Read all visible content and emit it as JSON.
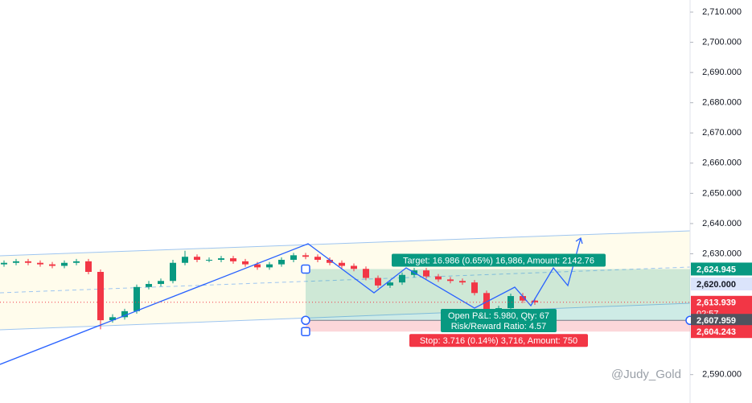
{
  "chart_data": {
    "type": "candlestick",
    "open": [
      2626.5,
      2627,
      2627.5,
      2627,
      2626.5,
      2626,
      2627,
      2627.5,
      2624,
      2608,
      2609,
      2611,
      2619,
      2620,
      2621,
      2627,
      2629,
      2628,
      2628,
      2628.5,
      2627.5,
      2626.5,
      2625.5,
      2626.5,
      2628,
      2629.5,
      2629,
      2628,
      2627,
      2626,
      2625,
      2622,
      2619.5,
      2620.5,
      2623,
      2624.5,
      2622.5,
      2621.5,
      2621,
      2620.5,
      2617,
      2611,
      2612,
      2616,
      2614.5
    ],
    "high": [
      2627.8,
      2628.3,
      2628.3,
      2627.8,
      2627.3,
      2627.8,
      2628.3,
      2628.3,
      2624.8,
      2610,
      2611.8,
      2619.8,
      2621,
      2621.8,
      2628,
      2631,
      2629.8,
      2628.8,
      2629.3,
      2629.3,
      2628.3,
      2627.3,
      2627.3,
      2628.8,
      2630.3,
      2630.3,
      2629.8,
      2628.8,
      2627.8,
      2626.8,
      2625.8,
      2622.8,
      2621.3,
      2623.8,
      2625.3,
      2625.3,
      2623.3,
      2622.3,
      2621.8,
      2621.3,
      2617.8,
      2612.8,
      2616.8,
      2617,
      2615.3
    ],
    "low": [
      2625.7,
      2626.2,
      2626.2,
      2625.7,
      2625.2,
      2625.2,
      2626.2,
      2623.2,
      2605,
      2607.2,
      2608.2,
      2610.2,
      2618.2,
      2619.2,
      2620.2,
      2626.2,
      2627.2,
      2627.2,
      2627.2,
      2626.7,
      2625.7,
      2624.7,
      2624.7,
      2625.7,
      2627.2,
      2628.2,
      2627.2,
      2626.2,
      2625.2,
      2624.2,
      2621.2,
      2618.7,
      2618.7,
      2619.7,
      2622.2,
      2621.7,
      2620.7,
      2620.2,
      2619.7,
      2616.2,
      2610.2,
      2610.2,
      2611.2,
      2613.7,
      2613.1
    ],
    "close": [
      2627,
      2627.5,
      2627,
      2626.5,
      2626,
      2627,
      2627.5,
      2624,
      2608,
      2609,
      2611,
      2619,
      2620,
      2621,
      2627,
      2629,
      2628,
      2628,
      2628.5,
      2627.5,
      2626.5,
      2625.5,
      2626.5,
      2628,
      2629.5,
      2629,
      2628,
      2627,
      2626,
      2625,
      2622,
      2619.5,
      2620.5,
      2623,
      2624.5,
      2622.5,
      2621.5,
      2621,
      2620.5,
      2617,
      2611,
      2612,
      2616,
      2614.5,
      2613.939
    ],
    "up_color": "#089981",
    "down_color": "#f23645",
    "ylim": [
      2580.6,
      2714
    ],
    "yticks": [
      {
        "value": 2710,
        "label": "2,710.000"
      },
      {
        "value": 2700,
        "label": "2,700.000"
      },
      {
        "value": 2690,
        "label": "2,690.000"
      },
      {
        "value": 2680,
        "label": "2,680.000"
      },
      {
        "value": 2670,
        "label": "2,670.000"
      },
      {
        "value": 2660,
        "label": "2,660.000"
      },
      {
        "value": 2650,
        "label": "2,650.000"
      },
      {
        "value": 2640,
        "label": "2,640.000"
      },
      {
        "value": 2630,
        "label": "2,630.000"
      },
      {
        "value": 2590,
        "label": "2,590.000"
      }
    ],
    "position": {
      "entry": 2607.959,
      "target": 2624.945,
      "stop": 2604.243,
      "target_label": "Target: 16.986 (0.65%) 16,986, Amount: 2142.76",
      "pnl_label": "Open P&L: 5.980, Qty: 67",
      "ratio_label": "Risk/Reward Ratio: 4.57",
      "stop_label": "Stop: 3.716 (0.14%) 3,716, Amount: 750"
    },
    "price_labels": [
      {
        "value": 2624.945,
        "label": "2,624.945",
        "color": "#089981"
      },
      {
        "value": 2620,
        "label": "2,620.000",
        "color": "#dbe4fb"
      },
      {
        "value": 2613.939,
        "label": "2,613.939",
        "color": "#f23645"
      },
      {
        "value": 2607.959,
        "label": "2,607.959",
        "color": "#50535e"
      },
      {
        "value": 2604.243,
        "label": "2,604.243",
        "color": "#f23645"
      }
    ],
    "countdown": "02:57"
  },
  "watermark": "@Judy_Gold"
}
